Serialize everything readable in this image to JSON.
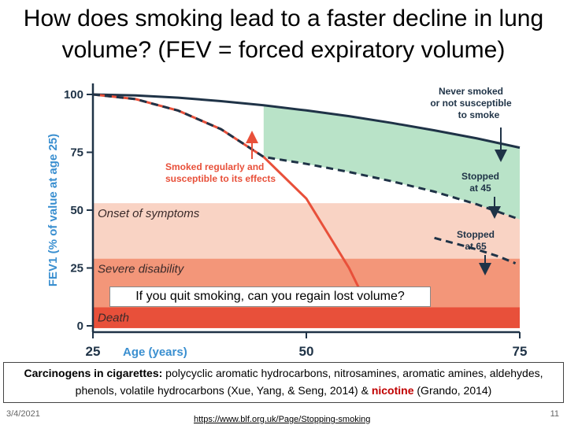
{
  "slide": {
    "title": "How does smoking lead to a faster decline in lung volume? (FEV = forced expiratory volume)",
    "quit_question": "If you quit smoking, can you regain lost volume?",
    "caption": {
      "part1_bold": "Carcinogens in cigarettes:",
      "part2": " polycyclic aromatic hydrocarbons, nitrosamines, aromatic amines, aldehydes, phenols, volatile hydrocarbons (Xue, Yang, & Seng, 2014) & ",
      "part3_red": "nicotine",
      "part4": " (Grando, 2014)"
    },
    "date": "3/4/2021",
    "url": "https://www.blf.org.uk/Page/Stopping-smoking",
    "page_number": "11"
  },
  "chart_data": {
    "type": "line",
    "ylabel": "FEV1 (% of value at age 25)",
    "xlabel": "Age (years)",
    "x_ticks": [
      25,
      50,
      75
    ],
    "y_ticks": [
      0,
      25,
      50,
      75,
      100
    ],
    "xlim": [
      25,
      75
    ],
    "ylim": [
      0,
      100
    ],
    "bands": [
      {
        "label": "Onset of symptoms",
        "from": 25,
        "to": 53,
        "color": "#f9d3c4"
      },
      {
        "label": "Severe disability",
        "from": 7,
        "to": 29,
        "color": "#f39679"
      },
      {
        "label": "Death",
        "from": -1,
        "to": 8,
        "color": "#e8503a"
      }
    ],
    "series": [
      {
        "name": "Never smoked or not susceptible to smoke",
        "style": "solid",
        "color": "#1f3347",
        "x": [
          25,
          30,
          35,
          40,
          45,
          50,
          55,
          60,
          65,
          70,
          75
        ],
        "y": [
          100,
          99.6,
          98.6,
          97.1,
          95.3,
          93.1,
          90.6,
          87.7,
          84.5,
          81,
          77
        ]
      },
      {
        "name": "Smoked regularly and susceptible to its effects",
        "style": "solid",
        "color": "#e8503a",
        "x": [
          25,
          30,
          35,
          40,
          45,
          50,
          55,
          57
        ],
        "y": [
          100,
          98,
          93,
          85,
          73,
          55,
          25,
          10
        ]
      },
      {
        "name": "Stopped at 45",
        "style": "dashed",
        "color": "#1f3347",
        "x": [
          25,
          30,
          35,
          40,
          45,
          50,
          55,
          60,
          65,
          70,
          75
        ],
        "y": [
          100,
          98,
          93,
          85,
          73,
          70,
          66.5,
          62.5,
          58,
          52.5,
          46
        ]
      },
      {
        "name": "Stopped at 65",
        "style": "dashed",
        "color": "#1f3347",
        "x": [
          65,
          67.5,
          70,
          72.5,
          74.5
        ],
        "y": [
          38,
          35.5,
          33,
          30,
          27
        ]
      }
    ],
    "annotations": [
      {
        "text": "Never smoked or not susceptible to smoke",
        "color": "#1f3347"
      },
      {
        "text": "Smoked regularly and susceptible to its effects",
        "color": "#e8503a"
      },
      {
        "text": "Stopped at 45",
        "color": "#1f3347"
      },
      {
        "text": "Stopped at 65",
        "color": "#1f3347"
      }
    ],
    "colors": {
      "axis_label": "#3a8fd0",
      "shade_green": "#b9e3c8",
      "dark": "#1f3347",
      "red": "#e8503a"
    }
  }
}
